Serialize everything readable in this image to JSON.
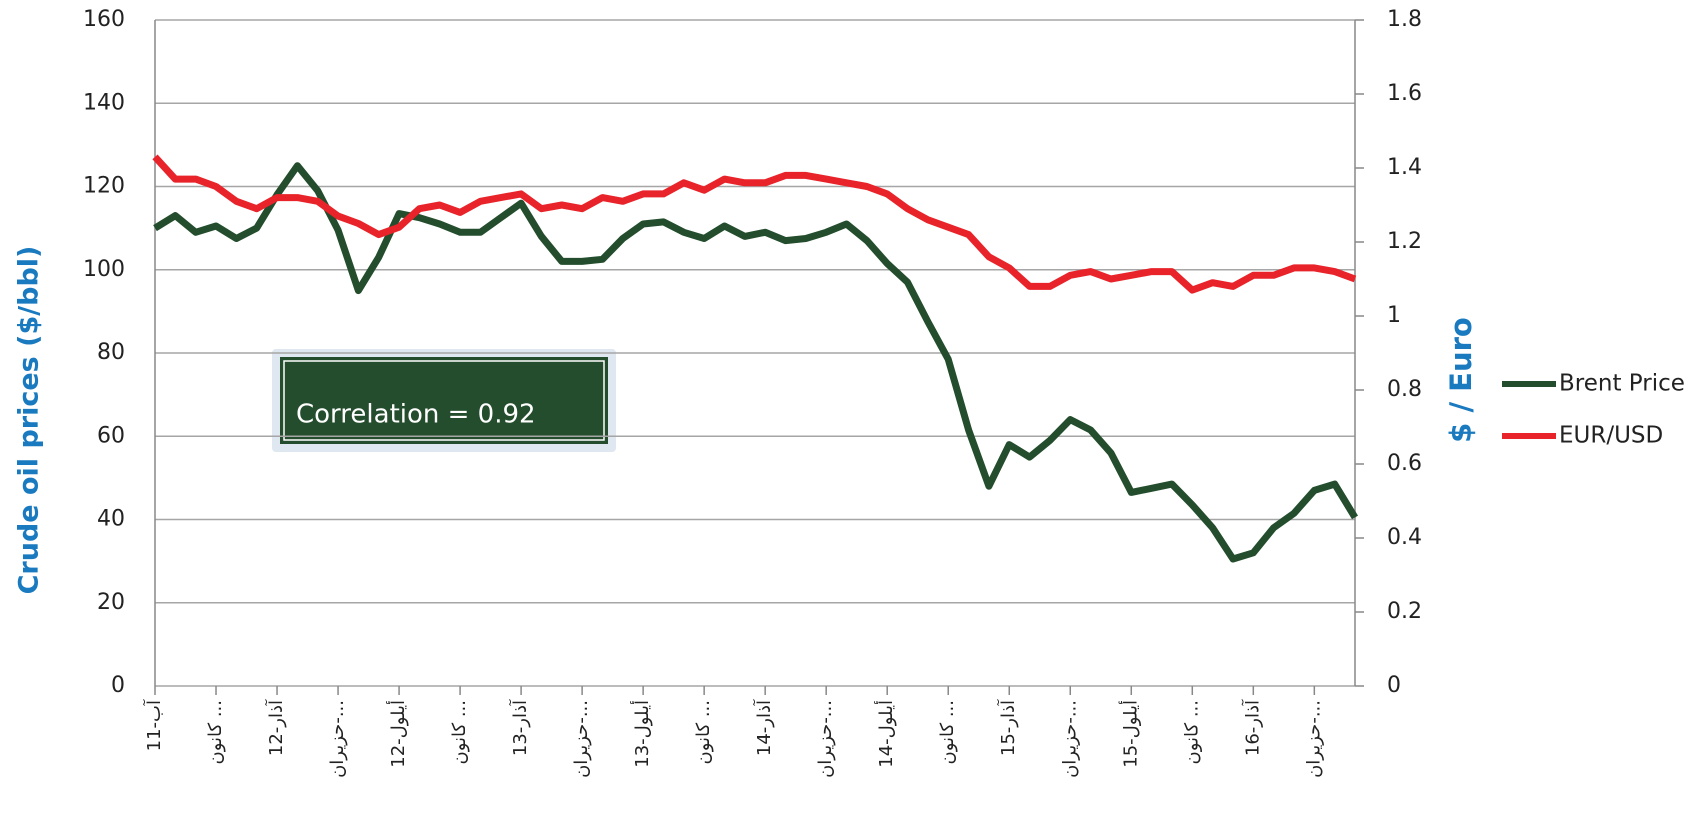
{
  "chart_data": {
    "type": "line",
    "y_label": "Crude oil prices ($/bbl)",
    "y2_label": "$ / Euro",
    "annotation": "Correlation = 0.92",
    "categories": [
      "آب-11",
      null,
      null,
      "كانون ...",
      null,
      null,
      "آذار-12",
      null,
      null,
      "حزيران-...",
      null,
      null,
      "أيلول-12",
      null,
      null,
      "كانون ...",
      null,
      null,
      "آذار-13",
      null,
      null,
      "حزيران-...",
      null,
      null,
      "أيلول-13",
      null,
      null,
      "كانون ...",
      null,
      null,
      "آذار-14",
      null,
      null,
      "حزيران-...",
      null,
      null,
      "أيلول-14",
      null,
      null,
      "كانون ...",
      null,
      null,
      "آذار-15",
      null,
      null,
      "حزيران-...",
      null,
      null,
      "أيلول-15",
      null,
      null,
      "كانون ...",
      null,
      null,
      "آذار-16",
      null,
      null,
      "حزيران-...",
      null,
      null
    ],
    "series": [
      {
        "name": "Brent Price",
        "color": "#234d2c",
        "axis": "y",
        "values": [
          110,
          113,
          109,
          110.5,
          107.5,
          110,
          118,
          125,
          119,
          109.5,
          95,
          103,
          113.5,
          112.5,
          111,
          109,
          109,
          112.5,
          116,
          108,
          102,
          102,
          102.5,
          107.5,
          111,
          111.5,
          109,
          107.5,
          110.5,
          108,
          109,
          107,
          107.5,
          109,
          111,
          107,
          101.5,
          97,
          87.5,
          78.5,
          61.5,
          48,
          58,
          55,
          59,
          64,
          61.5,
          56,
          46.5,
          47.5,
          48.5,
          43.5,
          38,
          30.5,
          32,
          38,
          41.5,
          47,
          48.5,
          40.5
        ]
      },
      {
        "name": "EUR/USD",
        "color": "#e8232a",
        "axis": "y2",
        "values": [
          1.43,
          1.37,
          1.37,
          1.35,
          1.31,
          1.29,
          1.32,
          1.32,
          1.31,
          1.27,
          1.25,
          1.22,
          1.24,
          1.29,
          1.3,
          1.28,
          1.31,
          1.32,
          1.33,
          1.29,
          1.3,
          1.29,
          1.32,
          1.31,
          1.33,
          1.33,
          1.36,
          1.34,
          1.37,
          1.36,
          1.36,
          1.38,
          1.38,
          1.37,
          1.36,
          1.35,
          1.33,
          1.29,
          1.26,
          1.24,
          1.22,
          1.16,
          1.13,
          1.08,
          1.08,
          1.11,
          1.12,
          1.1,
          1.11,
          1.12,
          1.12,
          1.07,
          1.09,
          1.08,
          1.11,
          1.11,
          1.13,
          1.13,
          1.12,
          1.1
        ]
      }
    ],
    "ylim": [
      0,
      160
    ],
    "yticks": [
      0,
      20,
      40,
      60,
      80,
      100,
      120,
      140,
      160
    ],
    "y2lim": [
      0,
      1.8
    ],
    "y2ticks": [
      0,
      0.2,
      0.4,
      0.6,
      0.8,
      1,
      1.2,
      1.4,
      1.6,
      1.8
    ],
    "grid": true,
    "legend": "right"
  }
}
